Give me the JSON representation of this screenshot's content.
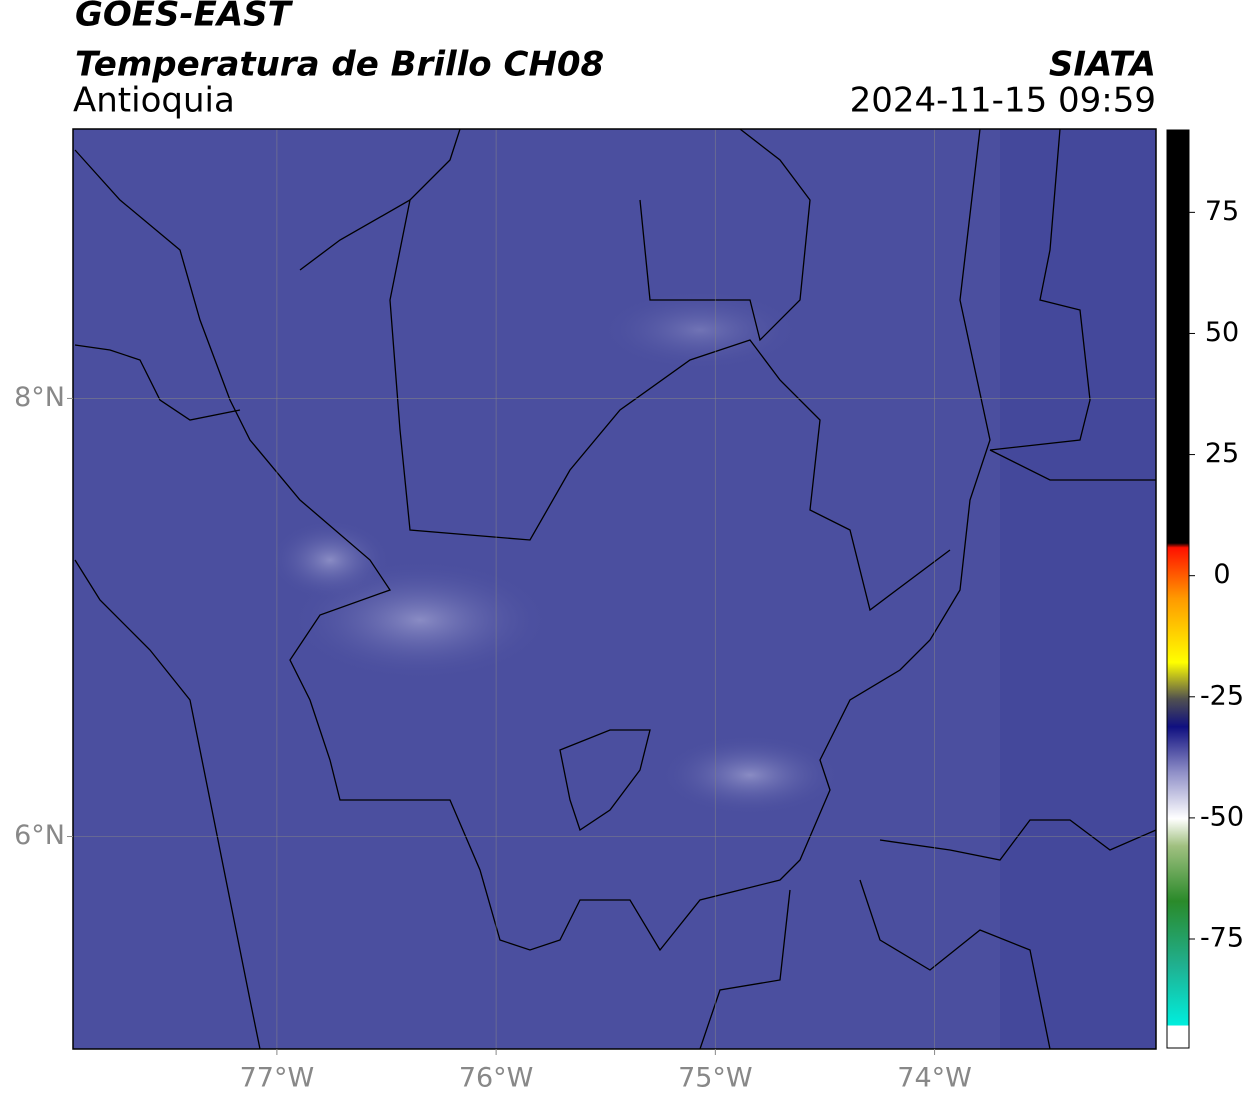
{
  "header": {
    "satellite": "GOES-EAST",
    "product": "Temperatura de Brillo CH08",
    "region": "Antioquia",
    "source": "SIATA",
    "datetime": "2024-11-15 09:59"
  },
  "map": {
    "xlim": [
      -77.93,
      -72.99
    ],
    "ylim": [
      5.03,
      9.23
    ],
    "xticks": [
      {
        "value": -77,
        "label": "77°W"
      },
      {
        "value": -76,
        "label": "76°W"
      },
      {
        "value": -75,
        "label": "75°W"
      },
      {
        "value": -74,
        "label": "74°W"
      }
    ],
    "yticks": [
      {
        "value": 6,
        "label": "6°N"
      },
      {
        "value": 8,
        "label": "8°N"
      }
    ],
    "grid": true
  },
  "colorbar": {
    "lim": [
      -97.5,
      92
    ],
    "ticks": [
      -75,
      -50,
      -25,
      0,
      25,
      50,
      75
    ]
  }
}
